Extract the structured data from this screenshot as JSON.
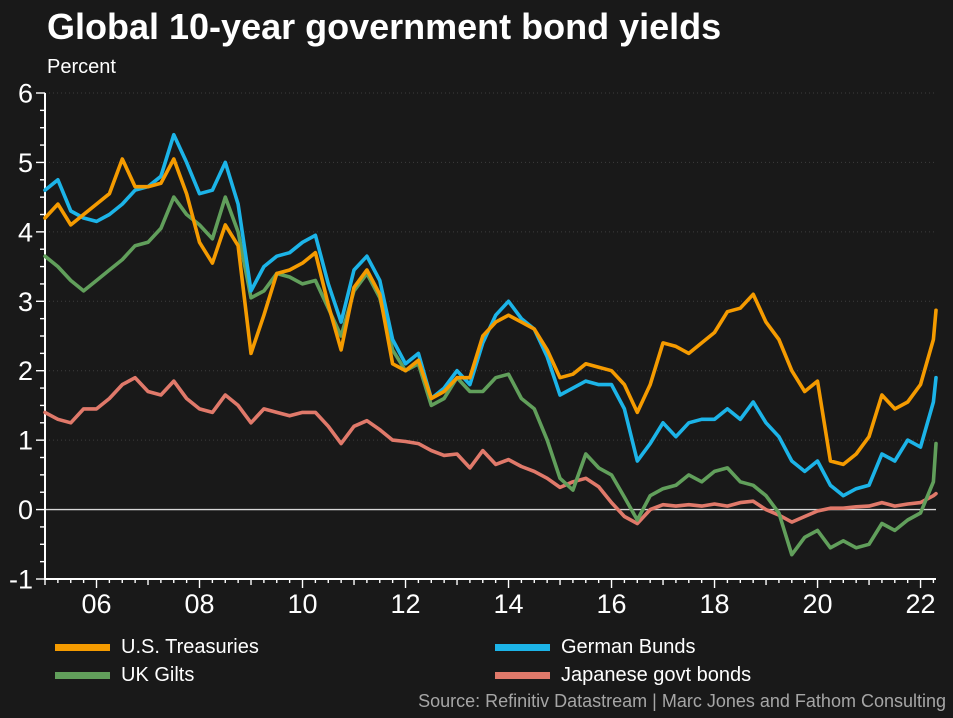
{
  "header": {
    "title": "Global 10-year government bond yields",
    "subtitle": "Percent"
  },
  "source": {
    "text": "Source: Refinitiv Datastream | Marc Jones and Fathom Consulting"
  },
  "colors": {
    "background": "#191919",
    "text": "#ffffff",
    "source_text": "#a6a6a6",
    "axis": "#ffffff",
    "gridline": "#3d3d3d",
    "zero_line": "#d8d8d8",
    "us_treasuries": "#F59B00",
    "german_bunds": "#1CB4E8",
    "uk_gilts": "#619F5B",
    "japanese_govt_bonds": "#E0796A"
  },
  "chart_data": {
    "type": "line",
    "title": "Global 10-year government bond yields",
    "ylabel": "Percent",
    "xlabel": "",
    "legend_position": "bottom",
    "grid": "horizontal dotted lines at integer yields 1-6, solid line at 0",
    "x_axis_range": [
      2005,
      2022.3
    ],
    "y_axis_range": [
      -1,
      6
    ],
    "y_gridline_values": [
      1,
      2,
      3,
      4,
      5,
      6
    ],
    "zero_line_value": 0,
    "y_tick_values": [
      -1,
      0,
      1,
      2,
      3,
      4,
      5,
      6
    ],
    "y_tick_labels": [
      "-1",
      "0",
      "1",
      "2",
      "3",
      "4",
      "5",
      "6"
    ],
    "y_minor_tick_step": 0.25,
    "x_tick_years": [
      2006,
      2008,
      2010,
      2012,
      2014,
      2016,
      2018,
      2020,
      2022
    ],
    "x_tick_labels": [
      "06",
      "08",
      "10",
      "12",
      "14",
      "16",
      "18",
      "20",
      "22"
    ],
    "x_minor_tick_step_years": 0.25,
    "x": [
      2005,
      2005.25,
      2005.5,
      2005.75,
      2006,
      2006.25,
      2006.5,
      2006.75,
      2007,
      2007.25,
      2007.5,
      2007.75,
      2008,
      2008.25,
      2008.5,
      2008.75,
      2009,
      2009.25,
      2009.5,
      2009.75,
      2010,
      2010.25,
      2010.5,
      2010.75,
      2011,
      2011.25,
      2011.5,
      2011.75,
      2012,
      2012.25,
      2012.5,
      2012.75,
      2013,
      2013.25,
      2013.5,
      2013.75,
      2014,
      2014.25,
      2014.5,
      2014.75,
      2015,
      2015.25,
      2015.5,
      2015.75,
      2016,
      2016.25,
      2016.5,
      2016.75,
      2017,
      2017.25,
      2017.5,
      2017.75,
      2018,
      2018.25,
      2018.5,
      2018.75,
      2019,
      2019.25,
      2019.5,
      2019.75,
      2020,
      2020.25,
      2020.5,
      2020.75,
      2021,
      2021.25,
      2021.5,
      2021.75,
      2022,
      2022.25,
      2022.3
    ],
    "series": [
      {
        "name": "U.S. Treasuries",
        "color": "#F59B00",
        "values": [
          4.2,
          4.4,
          4.1,
          4.25,
          4.4,
          4.55,
          5.05,
          4.65,
          4.65,
          4.7,
          5.05,
          4.55,
          3.85,
          3.55,
          4.1,
          3.8,
          2.25,
          2.8,
          3.4,
          3.45,
          3.55,
          3.7,
          2.95,
          2.3,
          3.2,
          3.45,
          3.1,
          2.1,
          2.0,
          2.15,
          1.6,
          1.7,
          1.9,
          1.9,
          2.5,
          2.7,
          2.8,
          2.7,
          2.6,
          2.3,
          1.9,
          1.95,
          2.1,
          2.05,
          2.0,
          1.8,
          1.4,
          1.8,
          2.4,
          2.35,
          2.25,
          2.4,
          2.55,
          2.85,
          2.9,
          3.1,
          2.7,
          2.45,
          2.0,
          1.7,
          1.85,
          0.7,
          0.65,
          0.8,
          1.05,
          1.65,
          1.45,
          1.55,
          1.8,
          2.45,
          2.87
        ]
      },
      {
        "name": "German Bunds",
        "color": "#1CB4E8",
        "values": [
          4.6,
          4.75,
          4.3,
          4.2,
          4.15,
          4.25,
          4.4,
          4.6,
          4.65,
          4.8,
          5.4,
          5.0,
          4.55,
          4.6,
          5.0,
          4.4,
          3.15,
          3.5,
          3.65,
          3.7,
          3.85,
          3.95,
          3.25,
          2.7,
          3.45,
          3.65,
          3.3,
          2.45,
          2.1,
          2.25,
          1.6,
          1.75,
          2.0,
          1.8,
          2.4,
          2.8,
          3.0,
          2.75,
          2.6,
          2.2,
          1.65,
          1.75,
          1.85,
          1.8,
          1.8,
          1.45,
          0.7,
          0.95,
          1.25,
          1.05,
          1.25,
          1.3,
          1.3,
          1.45,
          1.3,
          1.55,
          1.25,
          1.05,
          0.7,
          0.55,
          0.7,
          0.35,
          0.2,
          0.3,
          0.35,
          0.8,
          0.7,
          1.0,
          0.9,
          1.55,
          1.9
        ]
      },
      {
        "name": "UK Gilts",
        "color": "#619F5B",
        "values": [
          3.65,
          3.5,
          3.3,
          3.15,
          3.3,
          3.45,
          3.6,
          3.8,
          3.85,
          4.05,
          4.5,
          4.25,
          4.1,
          3.9,
          4.5,
          4.0,
          3.05,
          3.15,
          3.4,
          3.35,
          3.25,
          3.3,
          2.9,
          2.5,
          3.15,
          3.4,
          3.05,
          2.3,
          2.0,
          2.1,
          1.5,
          1.6,
          1.9,
          1.7,
          1.7,
          1.9,
          1.95,
          1.6,
          1.45,
          1.0,
          0.45,
          0.28,
          0.8,
          0.6,
          0.5,
          0.18,
          -0.15,
          0.2,
          0.3,
          0.35,
          0.5,
          0.4,
          0.55,
          0.6,
          0.4,
          0.35,
          0.2,
          -0.05,
          -0.65,
          -0.4,
          -0.3,
          -0.55,
          -0.45,
          -0.55,
          -0.5,
          -0.2,
          -0.3,
          -0.15,
          -0.05,
          0.4,
          0.95
        ]
      },
      {
        "name": "Japanese govt bonds",
        "color": "#E0796A",
        "values": [
          1.4,
          1.3,
          1.25,
          1.45,
          1.45,
          1.6,
          1.8,
          1.9,
          1.7,
          1.65,
          1.85,
          1.6,
          1.45,
          1.4,
          1.65,
          1.5,
          1.25,
          1.45,
          1.4,
          1.35,
          1.4,
          1.4,
          1.2,
          0.95,
          1.2,
          1.28,
          1.15,
          1.0,
          0.98,
          0.95,
          0.85,
          0.78,
          0.8,
          0.6,
          0.85,
          0.65,
          0.72,
          0.62,
          0.55,
          0.45,
          0.32,
          0.4,
          0.45,
          0.33,
          0.1,
          -0.1,
          -0.2,
          0.0,
          0.07,
          0.05,
          0.07,
          0.05,
          0.08,
          0.05,
          0.1,
          0.12,
          0.0,
          -0.08,
          -0.18,
          -0.1,
          -0.02,
          0.02,
          0.02,
          0.04,
          0.05,
          0.1,
          0.05,
          0.08,
          0.1,
          0.2,
          0.23
        ]
      }
    ]
  }
}
